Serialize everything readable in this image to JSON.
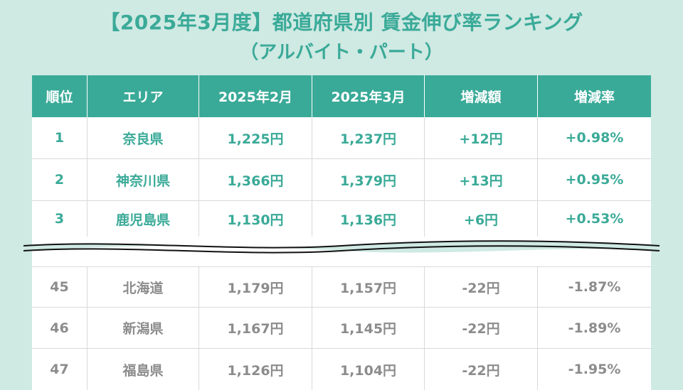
{
  "title": {
    "line1": "【2025年3月度】都道府県別 賃金伸び率ランキング",
    "line2": "（アルバイト・パート）"
  },
  "table": {
    "headers": [
      "順位",
      "エリア",
      "2025年2月",
      "2025年3月",
      "増減額",
      "増減率"
    ],
    "top_rows": [
      [
        "1",
        "奈良県",
        "1,225円",
        "1,237円",
        "+12円",
        "+0.98%"
      ],
      [
        "2",
        "神奈川県",
        "1,366円",
        "1,379円",
        "+13円",
        "+0.95%"
      ],
      [
        "3",
        "鹿児島県",
        "1,130円",
        "1,136円",
        "+6円",
        "+0.53%"
      ]
    ],
    "bottom_rows": [
      [
        "45",
        "北海道",
        "1,179円",
        "1,157円",
        "-22円",
        "-1.87%"
      ],
      [
        "46",
        "新潟県",
        "1,167円",
        "1,145円",
        "-22円",
        "-1.89%"
      ],
      [
        "47",
        "福島県",
        "1,126円",
        "1,104円",
        "-22円",
        "-1.95%"
      ]
    ]
  },
  "colors": {
    "accent": "#3aaa98",
    "background": "#cfe9e3",
    "muted_text": "#8c8c8c"
  }
}
